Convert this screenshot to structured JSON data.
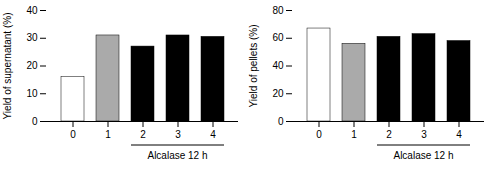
{
  "chart_data": [
    {
      "type": "bar",
      "categories": [
        "0",
        "1",
        "2",
        "3",
        "4"
      ],
      "values": [
        16,
        31,
        27,
        31,
        30.5
      ],
      "colors": [
        "#ffffff",
        "#aaaaaa",
        "#000000",
        "#000000",
        "#000000"
      ],
      "ylim": [
        0,
        40
      ],
      "yticks": [
        0,
        10,
        20,
        30,
        40
      ],
      "ylabel": "Yield of supernatant (%)",
      "annotations": [
        {
          "text": "Alcalase 12 h",
          "categories": [
            "2",
            "3",
            "4"
          ]
        }
      ]
    },
    {
      "type": "bar",
      "categories": [
        "0",
        "1",
        "2",
        "3",
        "4"
      ],
      "values": [
        67,
        56,
        61,
        63,
        58
      ],
      "colors": [
        "#ffffff",
        "#aaaaaa",
        "#000000",
        "#000000",
        "#000000"
      ],
      "ylim": [
        0,
        80
      ],
      "yticks": [
        0,
        20,
        40,
        60,
        80
      ],
      "ylabel": "Yield of pellets (%)",
      "annotations": [
        {
          "text": "Alcalase 12 h",
          "categories": [
            "2",
            "3",
            "4"
          ]
        }
      ]
    }
  ]
}
